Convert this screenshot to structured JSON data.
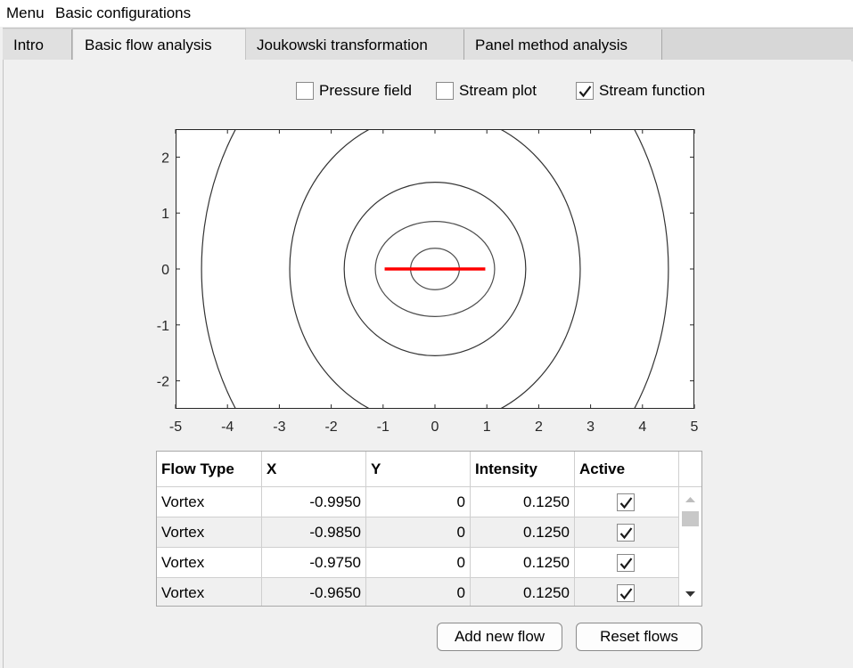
{
  "menubar": {
    "menu_label": "Menu",
    "config_label": "Basic configurations"
  },
  "tabs": [
    {
      "label": "Intro"
    },
    {
      "label": "Basic flow analysis"
    },
    {
      "label": "Joukowski transformation"
    },
    {
      "label": "Panel method analysis"
    }
  ],
  "checkboxes": [
    {
      "label": "Pressure field",
      "checked": false
    },
    {
      "label": "Stream plot",
      "checked": false
    },
    {
      "label": "Stream function",
      "checked": true
    }
  ],
  "chart_data": {
    "type": "line",
    "title": "",
    "xlabel": "",
    "ylabel": "",
    "xlim": [
      -5,
      5
    ],
    "ylim": [
      -2.5,
      2.5
    ],
    "x_ticks": [
      -5,
      -4,
      -3,
      -2,
      -1,
      0,
      1,
      2,
      3,
      4,
      5
    ],
    "y_ticks": [
      -2,
      -1,
      0,
      1,
      2
    ],
    "grid": false,
    "series": [
      {
        "kind": "contour",
        "rx": 0.47,
        "ry": 0.37,
        "color": "#4d4d4d"
      },
      {
        "kind": "contour",
        "rx": 1.15,
        "ry": 0.85,
        "color": "#4d4d4d"
      },
      {
        "kind": "contour",
        "rx": 1.75,
        "ry": 1.55,
        "color": "#333333"
      },
      {
        "kind": "contour",
        "rx": 2.8,
        "ry": 2.8,
        "color": "#333333"
      },
      {
        "kind": "contour",
        "rx": 4.5,
        "ry": 4.8,
        "color": "#333333"
      },
      {
        "kind": "segment",
        "x": [
          -0.97,
          0.97
        ],
        "y": [
          0,
          0
        ],
        "color": "#ff0000"
      }
    ]
  },
  "table": {
    "columns": [
      "Flow Type",
      "X",
      "Y",
      "Intensity",
      "Active"
    ],
    "rows": [
      [
        "Vortex",
        "-0.9950",
        "0",
        "0.1250",
        true
      ],
      [
        "Vortex",
        "-0.9850",
        "0",
        "0.1250",
        true
      ],
      [
        "Vortex",
        "-0.9750",
        "0",
        "0.1250",
        true
      ],
      [
        "Vortex",
        "-0.9650",
        "0",
        "0.1250",
        true
      ]
    ]
  },
  "buttons": {
    "add_label": "Add new flow",
    "reset_label": "Reset flows"
  }
}
